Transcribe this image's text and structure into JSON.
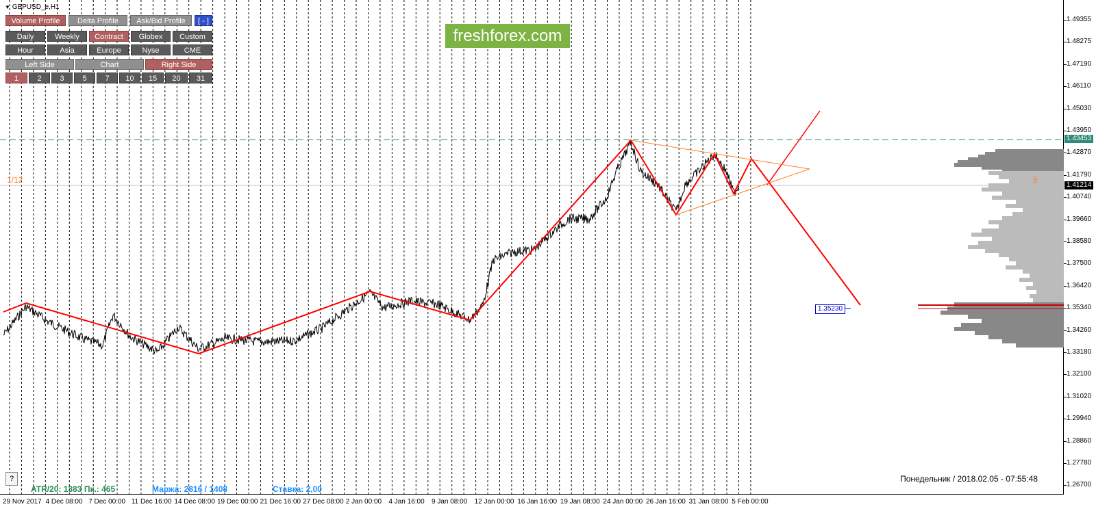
{
  "symbol": "GBPUSD_e,H1",
  "toolbar": {
    "row1": [
      "Volume Profile",
      "Delta Profile",
      "Ask/Bid Profile",
      "[ - ]"
    ],
    "row2": [
      "Daily",
      "Weekly",
      "Contract",
      "Globex",
      "Custom"
    ],
    "row3": [
      "Hour",
      "Asia",
      "Europe",
      "Nyse",
      "CME"
    ],
    "row4": [
      "Left Side",
      "Chart",
      "Right Side"
    ],
    "row5": [
      "1",
      "2",
      "3",
      "5",
      "7",
      "10",
      "15",
      "20",
      "31"
    ]
  },
  "watermark": "freshforex.com",
  "left_label": "1/12",
  "right_label": "5",
  "price_axis": [
    "1.49355",
    "1.48275",
    "1.47190",
    "1.46110",
    "1.45030",
    "1.43950",
    "1.42870",
    "1.41790",
    "1.40740",
    "1.39660",
    "1.38580",
    "1.37500",
    "1.36420",
    "1.35340",
    "1.34260",
    "1.33180",
    "1.32100",
    "1.31020",
    "1.29940",
    "1.28860",
    "1.27780",
    "1.26700"
  ],
  "price_tags": {
    "level": "1.43453",
    "current": "1.41214"
  },
  "box_label": "1.35230",
  "time_axis": [
    "29 Nov 2017",
    "4 Dec 08:00",
    "7 Dec 00:00",
    "11 Dec 16:00",
    "14 Dec 08:00",
    "19 Dec 00:00",
    "21 Dec 16:00",
    "27 Dec 08:00",
    "2 Jan 00:00",
    "4 Jan 16:00",
    "9 Jan 08:00",
    "12 Jan 00:00",
    "16 Jan 16:00",
    "19 Jan 08:00",
    "24 Jan 00:00",
    "26 Jan 16:00",
    "31 Jan 08:00",
    "5 Feb 00:00"
  ],
  "help_button": "?",
  "stats": {
    "atr": "ATR/20: 1383  Пк.: 465",
    "margin": "Маржа: 2816 / 1408",
    "rate": "Ставка: 2,00"
  },
  "datetime": "Понедельник  /  2018.02.05  -  07:55:48",
  "colors": {
    "accent_red": "#ff0000",
    "orange": "#ff7f27",
    "teal_line": "#2e8b7a",
    "watermark_bg": "#7cb342",
    "active_button": "#b06060"
  }
}
